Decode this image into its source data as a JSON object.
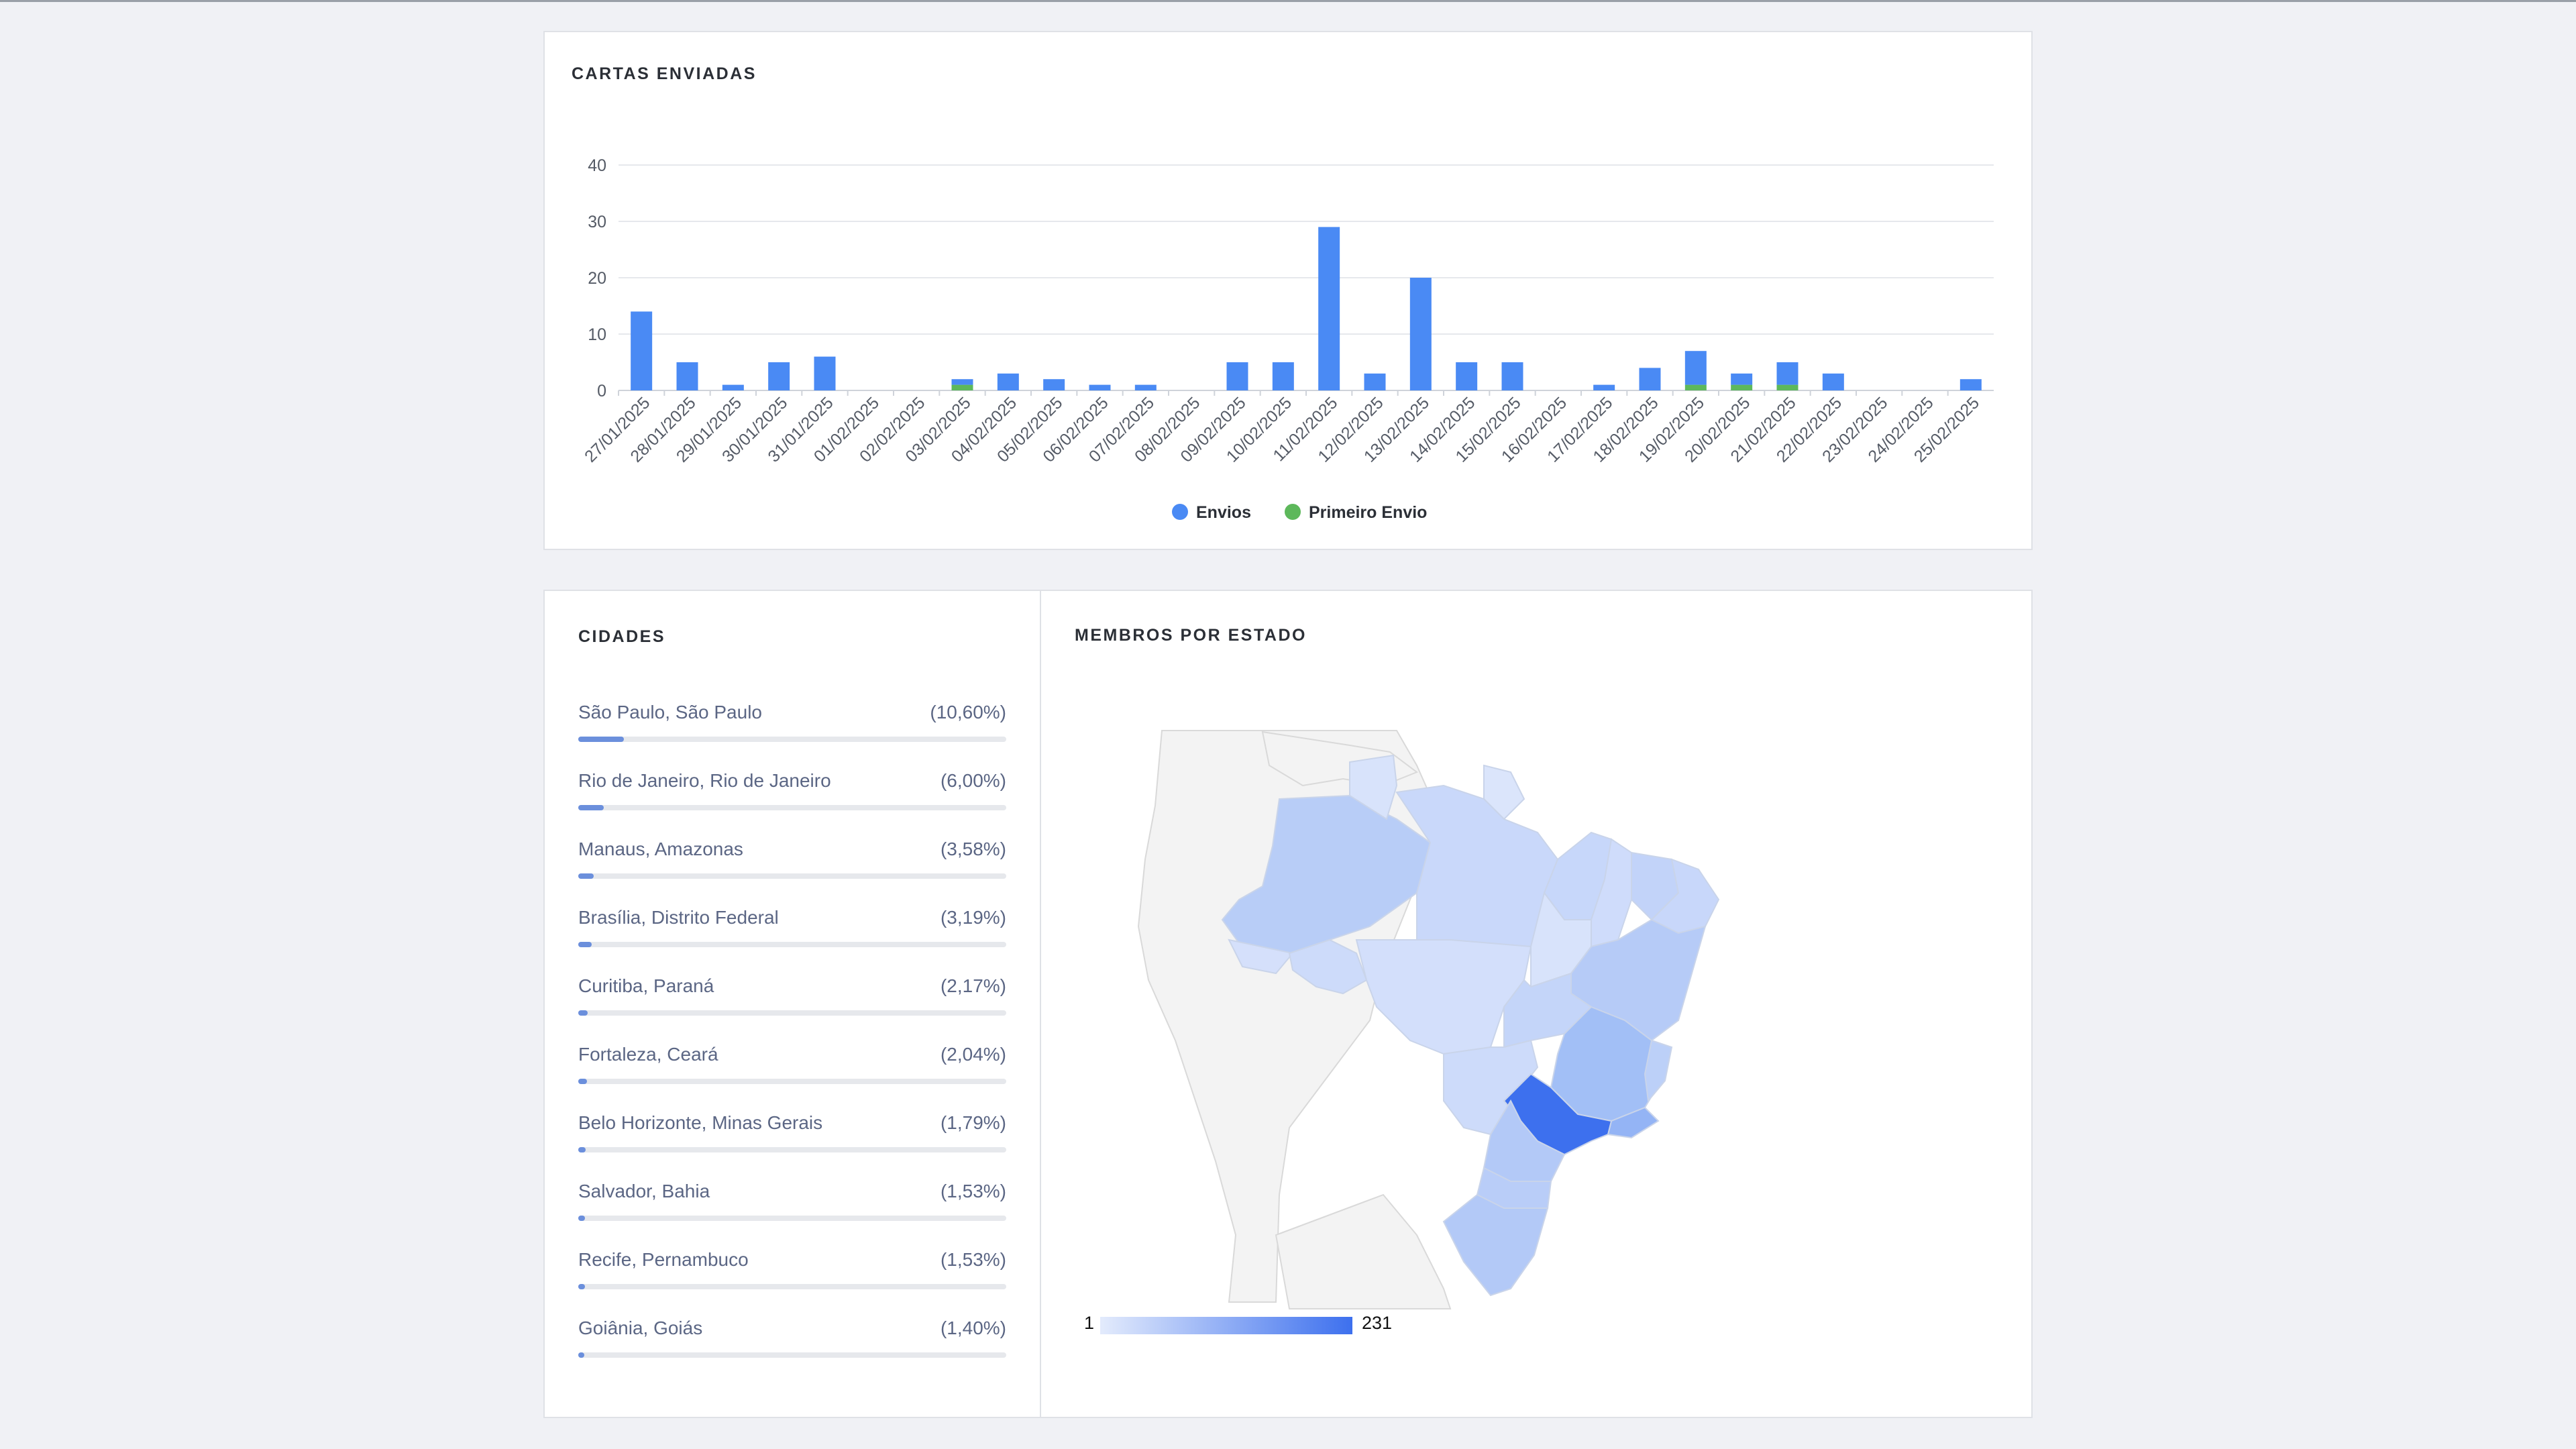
{
  "chart_card": {
    "title": "CARTAS ENVIADAS"
  },
  "chart_data": {
    "type": "bar",
    "title": "CARTAS ENVIADAS",
    "categories": [
      "27/01/2025",
      "28/01/2025",
      "29/01/2025",
      "30/01/2025",
      "31/01/2025",
      "01/02/2025",
      "02/02/2025",
      "03/02/2025",
      "04/02/2025",
      "05/02/2025",
      "06/02/2025",
      "07/02/2025",
      "08/02/2025",
      "09/02/2025",
      "10/02/2025",
      "11/02/2025",
      "12/02/2025",
      "13/02/2025",
      "14/02/2025",
      "15/02/2025",
      "16/02/2025",
      "17/02/2025",
      "18/02/2025",
      "19/02/2025",
      "20/02/2025",
      "21/02/2025",
      "22/02/2025",
      "23/02/2025",
      "24/02/2025",
      "25/02/2025"
    ],
    "series": [
      {
        "name": "Envios",
        "color": "#4a8af4",
        "values": [
          14,
          5,
          1,
          5,
          6,
          0,
          0,
          1,
          3,
          2,
          1,
          1,
          0,
          5,
          5,
          29,
          3,
          20,
          5,
          5,
          0,
          1,
          4,
          6,
          2,
          4,
          3,
          0,
          0,
          2
        ]
      },
      {
        "name": "Primeiro Envio",
        "color": "#5db85b",
        "values": [
          0,
          0,
          0,
          0,
          0,
          0,
          0,
          1,
          0,
          0,
          0,
          0,
          0,
          0,
          0,
          0,
          0,
          0,
          0,
          0,
          0,
          0,
          0,
          1,
          1,
          1,
          0,
          0,
          0,
          0
        ]
      }
    ],
    "stacked": true,
    "ylim": [
      0,
      40
    ],
    "yticks": [
      0,
      10,
      20,
      30,
      40
    ],
    "grid": true,
    "legend": "bottom"
  },
  "cities_card": {
    "title": "CIDADES",
    "items": [
      {
        "name": "São Paulo, São Paulo",
        "pct": "(10,60%)",
        "value": 10.6
      },
      {
        "name": "Rio de Janeiro, Rio de Janeiro",
        "pct": "(6,00%)",
        "value": 6.0
      },
      {
        "name": "Manaus, Amazonas",
        "pct": "(3,58%)",
        "value": 3.58
      },
      {
        "name": "Brasília, Distrito Federal",
        "pct": "(3,19%)",
        "value": 3.19
      },
      {
        "name": "Curitiba, Paraná",
        "pct": "(2,17%)",
        "value": 2.17
      },
      {
        "name": "Fortaleza, Ceará",
        "pct": "(2,04%)",
        "value": 2.04
      },
      {
        "name": "Belo Horizonte, Minas Gerais",
        "pct": "(1,79%)",
        "value": 1.79
      },
      {
        "name": "Salvador, Bahia",
        "pct": "(1,53%)",
        "value": 1.53
      },
      {
        "name": "Recife, Pernambuco",
        "pct": "(1,53%)",
        "value": 1.53
      },
      {
        "name": "Goiânia, Goiás",
        "pct": "(1,40%)",
        "value": 1.4
      }
    ]
  },
  "map_card": {
    "title": "MEMBROS POR ESTADO",
    "legend_min": "1",
    "legend_max": "231",
    "color_min": "#dfe8fb",
    "color_max": "#3d70ee"
  }
}
